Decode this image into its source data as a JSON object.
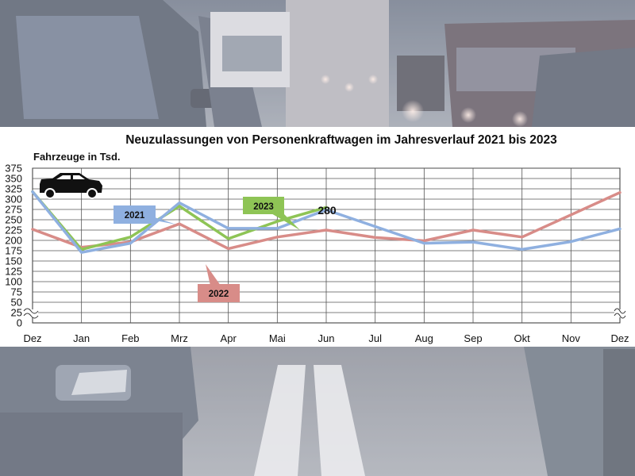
{
  "chart_data": {
    "type": "line",
    "title": "Neuzulassungen von Personenkraftwagen im Jahresverlauf 2021 bis 2023",
    "ylabel": "Fahrzeuge in Tsd.",
    "xlabel": "",
    "categories": [
      "Dez",
      "Jan",
      "Feb",
      "Mrz",
      "Apr",
      "Mai",
      "Jun",
      "Jul",
      "Aug",
      "Sep",
      "Okt",
      "Nov",
      "Dez"
    ],
    "y_ticks": [
      0,
      25,
      50,
      75,
      100,
      125,
      150,
      175,
      200,
      225,
      250,
      275,
      300,
      325,
      350,
      375
    ],
    "ylim": [
      0,
      375
    ],
    "y_axis_break": [
      0,
      125
    ],
    "grid": true,
    "series": [
      {
        "name": "2021",
        "color": "#8fb0e0",
        "values": [
          318,
          171,
          193,
          291,
          229,
          229,
          274,
          null,
          193,
          196,
          178,
          197,
          228
        ]
      },
      {
        "name": "2022",
        "color": "#d88c88",
        "values": [
          227,
          183,
          196,
          240,
          180,
          208,
          225,
          207,
          199,
          225,
          208,
          262,
          316
        ]
      },
      {
        "name": "2023",
        "color": "#8ec455",
        "values": [
          318,
          178,
          208,
          283,
          204,
          246,
          280,
          null,
          null,
          null,
          null,
          null,
          null
        ]
      }
    ],
    "annotations": [
      {
        "text": "280",
        "series": "2023",
        "category": "Jun"
      }
    ]
  }
}
